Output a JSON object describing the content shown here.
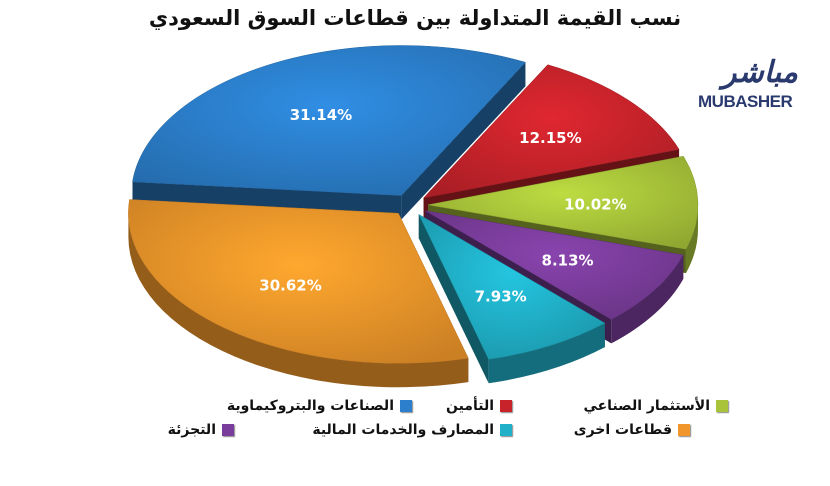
{
  "logo": {
    "arabic": "مباشر",
    "latin": "MUBASHER"
  },
  "chart_data": {
    "type": "pie",
    "title": "نسب القيمة المتداولة بين قطاعات السوق السعودي",
    "slices": [
      {
        "label": "قطاعات اخرى",
        "value": 30.62,
        "display": "30.62%",
        "color": "#f0962a"
      },
      {
        "label": "الصناعات والبتروكيماوية",
        "value": 31.14,
        "display": "31.14%",
        "color": "#2b7fcc"
      },
      {
        "label": "التأمين",
        "value": 12.15,
        "display": "12.15%",
        "color": "#c8232b"
      },
      {
        "label": "الأستثمار الصناعي",
        "value": 10.02,
        "display": "10.02%",
        "color": "#a9c43a"
      },
      {
        "label": "التجزئة",
        "value": 8.13,
        "display": "8.13%",
        "color": "#7a3d9b"
      },
      {
        "label": "المصارف والخدمات المالية",
        "value": 7.93,
        "display": "7.93%",
        "color": "#20b0c8"
      }
    ],
    "legend": [
      {
        "label": "الصناعات والبتروكيماوية",
        "color": "#2b7fcc"
      },
      {
        "label": "التأمين",
        "color": "#c8232b"
      },
      {
        "label": "الأستثمار الصناعي",
        "color": "#a9c43a"
      },
      {
        "label": "التجزئة",
        "color": "#7a3d9b"
      },
      {
        "label": "المصارف والخدمات المالية",
        "color": "#20b0c8"
      },
      {
        "label": "قطاعات اخرى",
        "color": "#f0962a"
      }
    ]
  }
}
